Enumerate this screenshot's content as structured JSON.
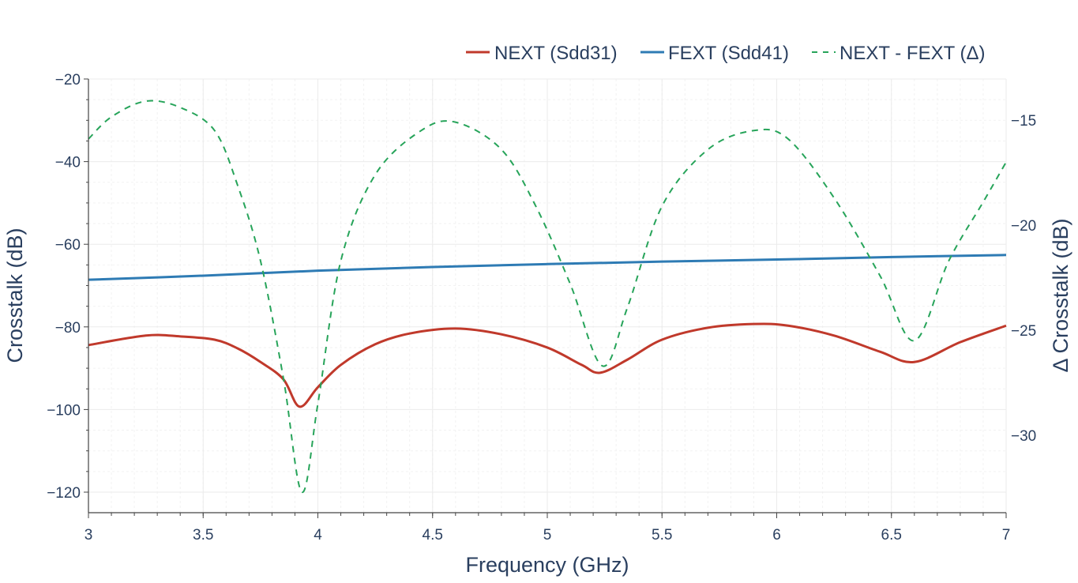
{
  "chart_data": {
    "type": "line",
    "title": "",
    "xlabel": "Frequency (GHz)",
    "ylabel": "Crosstalk (dB)",
    "y2label": "Δ Crosstalk (dB)",
    "xlim": [
      3,
      7
    ],
    "ylim": [
      -125,
      -20
    ],
    "y2lim": [
      -33.68,
      -13.05
    ],
    "grid": true,
    "legend_position": "top-right",
    "x_ticks": [
      3,
      3.5,
      4,
      4.5,
      5,
      5.5,
      6,
      6.5,
      7
    ],
    "x_tick_labels": [
      "3",
      "3.5",
      "4",
      "4.5",
      "5",
      "5.5",
      "6",
      "6.5",
      "7"
    ],
    "y_ticks": [
      -20,
      -40,
      -60,
      -80,
      -100,
      -120
    ],
    "y_tick_labels": [
      "−20",
      "−40",
      "−60",
      "−80",
      "−100",
      "−120"
    ],
    "y2_ticks": [
      -15,
      -20,
      -25,
      -30
    ],
    "y2_tick_labels": [
      "−15",
      "−20",
      "−25",
      "−30"
    ],
    "series": [
      {
        "name": "NEXT (Sdd31)",
        "axis": "left",
        "color": "#c0392b",
        "dash": "solid",
        "x": [
          3.0,
          3.25,
          3.4,
          3.55,
          3.65,
          3.75,
          3.85,
          3.92,
          4.0,
          4.1,
          4.25,
          4.4,
          4.6,
          4.8,
          5.0,
          5.15,
          5.23,
          5.35,
          5.5,
          5.7,
          5.9,
          6.05,
          6.25,
          6.45,
          6.6,
          6.8,
          7.0
        ],
        "values": [
          -84.4,
          -82.1,
          -82.3,
          -83.1,
          -85.2,
          -88.5,
          -92.7,
          -99.3,
          -94.6,
          -89.2,
          -84.2,
          -81.6,
          -80.4,
          -81.8,
          -85.0,
          -89.2,
          -91.1,
          -87.9,
          -83.1,
          -80.2,
          -79.3,
          -79.7,
          -82.1,
          -86.0,
          -88.5,
          -83.7,
          -79.7
        ]
      },
      {
        "name": "FEXT (Sdd41)",
        "axis": "left",
        "color": "#2e7bb4",
        "dash": "solid",
        "x": [
          3.0,
          3.5,
          4.0,
          4.5,
          5.0,
          5.5,
          6.0,
          6.5,
          7.0
        ],
        "values": [
          -68.6,
          -67.6,
          -66.4,
          -65.5,
          -64.8,
          -64.2,
          -63.7,
          -63.1,
          -62.6
        ]
      },
      {
        "name": "NEXT - FEXT (Δ)",
        "axis": "right",
        "color": "#27a45a",
        "dash": "dashed",
        "x": [
          3.0,
          3.1,
          3.25,
          3.4,
          3.55,
          3.65,
          3.75,
          3.85,
          3.93,
          4.0,
          4.1,
          4.25,
          4.45,
          4.6,
          4.8,
          4.95,
          5.1,
          5.24,
          5.35,
          5.5,
          5.7,
          5.9,
          6.05,
          6.25,
          6.45,
          6.6,
          6.75,
          6.9,
          7.0
        ],
        "values": [
          -15.9,
          -14.85,
          -14.1,
          -14.4,
          -15.5,
          -18.1,
          -21.7,
          -27.3,
          -32.7,
          -28.5,
          -21.7,
          -17.6,
          -15.5,
          -15.1,
          -16.4,
          -19.1,
          -22.8,
          -26.7,
          -23.9,
          -19.1,
          -16.4,
          -15.5,
          -15.9,
          -18.7,
          -22.4,
          -25.5,
          -21.7,
          -18.9,
          -17.0
        ]
      }
    ]
  },
  "legend": {
    "items": [
      {
        "label": "NEXT (Sdd31)",
        "color": "#c0392b",
        "dash": "solid"
      },
      {
        "label": "FEXT (Sdd41)",
        "color": "#2e7bb4",
        "dash": "solid"
      },
      {
        "label": "NEXT - FEXT (Δ)",
        "color": "#27a45a",
        "dash": "dashed"
      }
    ]
  },
  "axes": {
    "x_title": "Frequency (GHz)",
    "y_title": "Crosstalk (dB)",
    "y2_title": "Δ Crosstalk (dB)"
  },
  "colors": {
    "axis": "#444444",
    "grid": "#ebebeb",
    "minor_grid": "#f2f2f2",
    "text": "#2a3f5f"
  }
}
